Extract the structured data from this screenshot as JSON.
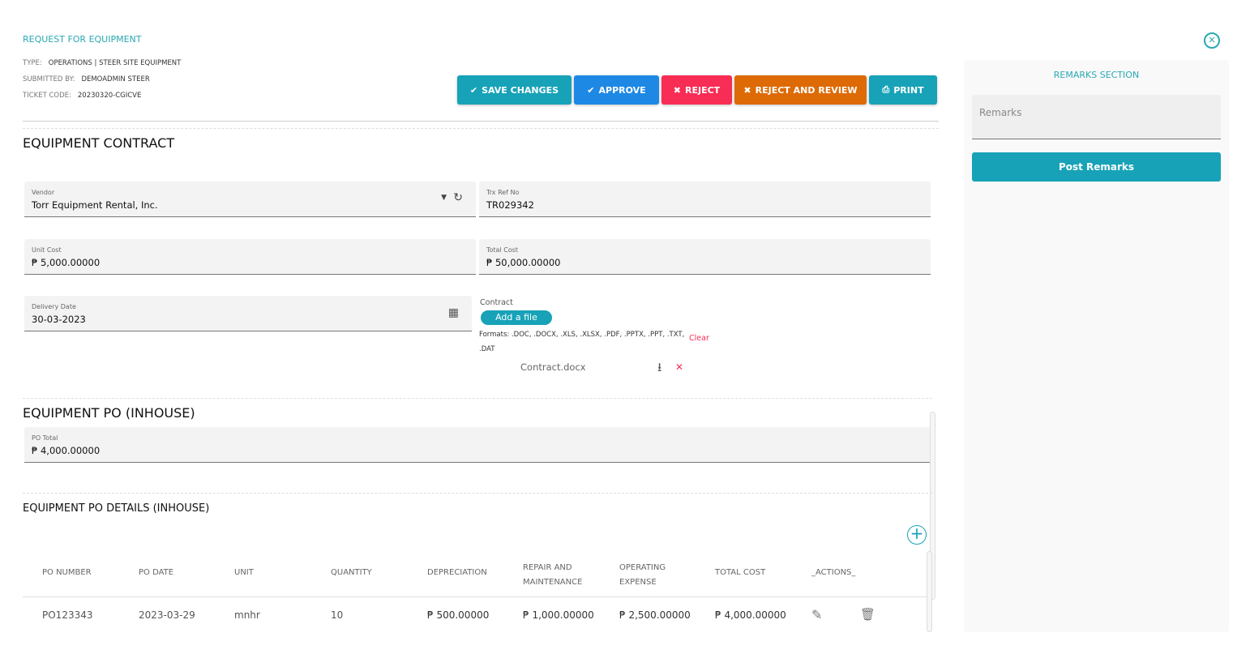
{
  "header": {
    "title": "REQUEST FOR EQUIPMENT",
    "type_label": "TYPE:",
    "type_value": "OPERATIONS | STEER SITE EQUIPMENT",
    "submitted_label": "SUBMITTED BY:",
    "submitted_value": "DEMOADMIN STEER",
    "ticket_label": "TICKET CODE:",
    "ticket_value": "20230320-CGICVE"
  },
  "toolbar": {
    "save": "SAVE CHANGES",
    "approve": "APPROVE",
    "reject": "REJECT",
    "reject_review": "REJECT AND REVIEW",
    "print": "PRINT",
    "colors": {
      "save": "#17a2b8",
      "approve": "#1e88e5",
      "reject": "#f72d55",
      "reject_review": "#dd6a04",
      "print": "#17a2b8"
    }
  },
  "contract": {
    "heading": "EQUIPMENT CONTRACT",
    "vendor_label": "Vendor",
    "vendor_value": "Torr Equipment Rental, Inc.",
    "trx_label": "Trx Ref No",
    "trx_value": "TR029342",
    "unit_cost_label": "Unit Cost",
    "unit_cost_value": "₱ 5,000.00000",
    "total_cost_label": "Total Cost",
    "total_cost_value": "₱ 50,000.00000",
    "delivery_label": "Delivery Date",
    "delivery_value": "30-03-2023",
    "contract_label": "Contract",
    "add_file": "Add a file",
    "formats": "Formats: .DOC, .DOCX, .XLS, .XLSX, .PDF, .PPTX, .PPT, .TXT, .DAT",
    "clear": "Clear",
    "file_name": "Contract.docx"
  },
  "po": {
    "heading": "EQUIPMENT PO (INHOUSE)",
    "total_label": "PO Total",
    "total_value": "₱ 4,000.00000"
  },
  "details": {
    "heading": "EQUIPMENT PO DETAILS (INHOUSE)",
    "columns": [
      "PO NUMBER",
      "PO DATE",
      "UNIT",
      "QUANTITY",
      "DEPRECIATION",
      "REPAIR AND MAINTENANCE",
      "OPERATING EXPENSE",
      "TOTAL COST",
      "_ACTIONS_"
    ],
    "rows": [
      [
        "PO123343",
        "2023-03-29",
        "mnhr",
        "10",
        "₱ 500.00000",
        "₱ 1,000.00000",
        "₱ 2,500.00000",
        "₱ 4,000.00000"
      ]
    ]
  },
  "remarks": {
    "heading": "REMARKS SECTION",
    "placeholder": "Remarks",
    "post": "Post Remarks"
  }
}
